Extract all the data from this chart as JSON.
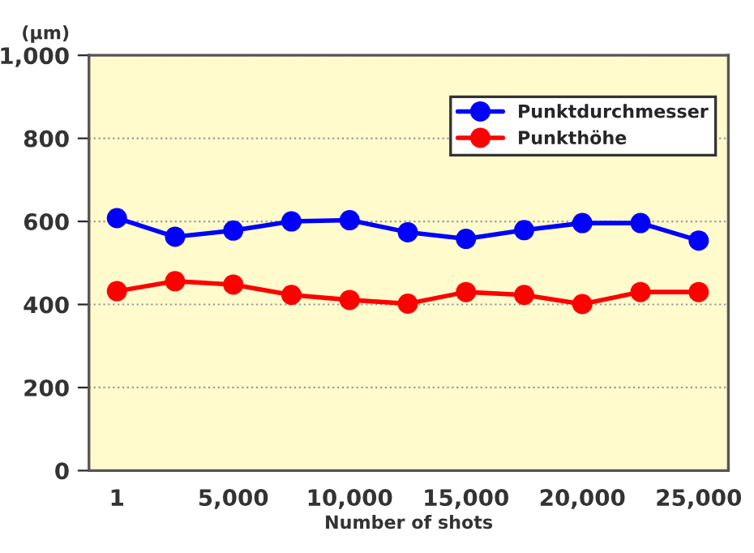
{
  "chart_data": {
    "type": "line",
    "xlabel": "Number of shots",
    "ylabel": "(μm)",
    "x": [
      1,
      2500,
      5000,
      7500,
      10000,
      12500,
      15000,
      17500,
      20000,
      22500,
      25000
    ],
    "series": [
      {
        "name": "Punktdurchmesser",
        "color": "#0000ff",
        "values": [
          608,
          563,
          578,
          600,
          603,
          574,
          558,
          579,
          596,
          596,
          554
        ]
      },
      {
        "name": "Punkthöhe",
        "color": "#ff0000",
        "values": [
          432,
          456,
          448,
          423,
          411,
          402,
          430,
          423,
          401,
          430,
          430
        ]
      }
    ],
    "xlim": [
      -1200,
      26275
    ],
    "xticks": [
      {
        "value": 1,
        "label": "1"
      },
      {
        "value": 5000,
        "label": "5,000"
      },
      {
        "value": 10000,
        "label": "10,000"
      },
      {
        "value": 15000,
        "label": "15,000"
      },
      {
        "value": 20000,
        "label": "20,000"
      },
      {
        "value": 25000,
        "label": "25,000"
      }
    ],
    "ylim": [
      0,
      1000
    ],
    "yticks": [
      0,
      200,
      400,
      600,
      800,
      {
        "value": 1000,
        "label": "1,000"
      }
    ],
    "grid": "y",
    "legend": "top right",
    "marker": "circle",
    "line_style": "solid"
  }
}
